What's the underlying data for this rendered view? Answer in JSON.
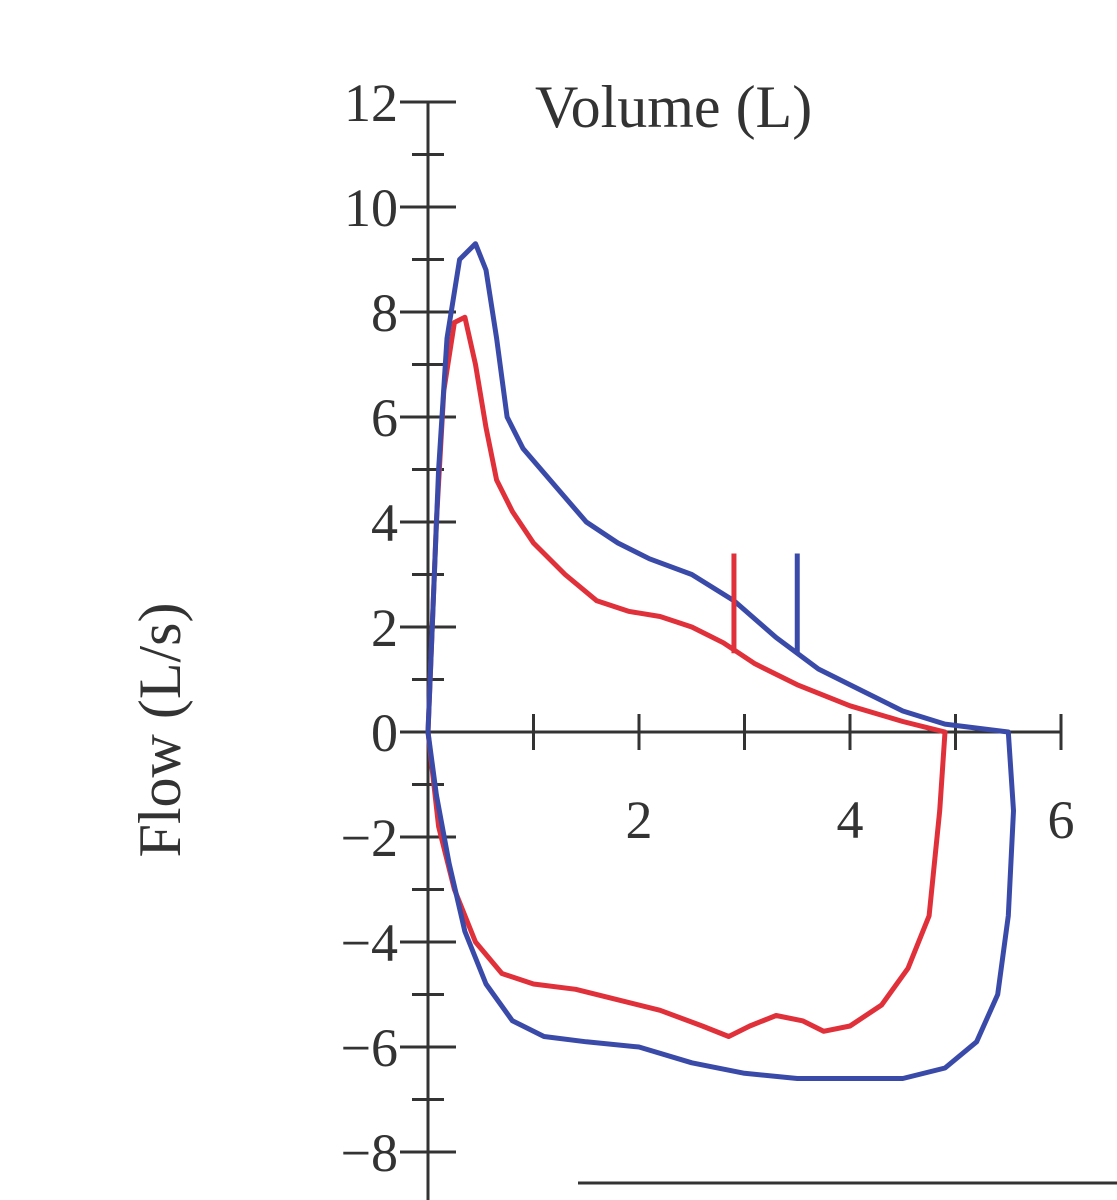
{
  "chart_data": {
    "type": "line",
    "xlabel": "Volume (L)",
    "ylabel": "Flow (L/s)",
    "xlim": [
      0,
      6
    ],
    "ylim": [
      -8,
      12
    ],
    "x_tick_labels": [
      "2",
      "4",
      "6"
    ],
    "y_tick_labels": [
      "12",
      "10",
      "8",
      "6",
      "4",
      "2",
      "0",
      "−2",
      "−4",
      "−6",
      "−8"
    ],
    "x_ticks": [
      1,
      2,
      3,
      4,
      5,
      6
    ],
    "x_tick_label_values": [
      2,
      4,
      6
    ],
    "y_ticks": [
      12,
      10,
      8,
      6,
      4,
      2,
      0,
      -2,
      -4,
      -6,
      -8
    ],
    "grid": false,
    "colors": {
      "red": "#e0303a",
      "blue": "#3a4aa8",
      "axis": "#333333"
    },
    "series": [
      {
        "color": "#e0303a",
        "points": [
          [
            0,
            0
          ],
          [
            0.03,
            1.5
          ],
          [
            0.08,
            4
          ],
          [
            0.15,
            6.5
          ],
          [
            0.25,
            7.8
          ],
          [
            0.35,
            7.9
          ],
          [
            0.45,
            7
          ],
          [
            0.55,
            5.8
          ],
          [
            0.65,
            4.8
          ],
          [
            0.8,
            4.2
          ],
          [
            1.0,
            3.6
          ],
          [
            1.3,
            3.0
          ],
          [
            1.6,
            2.5
          ],
          [
            1.9,
            2.3
          ],
          [
            2.2,
            2.2
          ],
          [
            2.5,
            2.0
          ],
          [
            2.8,
            1.7
          ],
          [
            3.1,
            1.3
          ],
          [
            3.5,
            0.9
          ],
          [
            4.0,
            0.5
          ],
          [
            4.5,
            0.2
          ],
          [
            4.8,
            0.05
          ],
          [
            4.9,
            0
          ],
          [
            4.85,
            -1.5
          ],
          [
            4.75,
            -3.5
          ],
          [
            4.55,
            -4.5
          ],
          [
            4.3,
            -5.2
          ],
          [
            4.0,
            -5.6
          ],
          [
            3.75,
            -5.7
          ],
          [
            3.55,
            -5.5
          ],
          [
            3.3,
            -5.4
          ],
          [
            3.05,
            -5.6
          ],
          [
            2.85,
            -5.8
          ],
          [
            2.6,
            -5.6
          ],
          [
            2.2,
            -5.3
          ],
          [
            1.8,
            -5.1
          ],
          [
            1.4,
            -4.9
          ],
          [
            1.0,
            -4.8
          ],
          [
            0.7,
            -4.6
          ],
          [
            0.45,
            -4
          ],
          [
            0.25,
            -3
          ],
          [
            0.1,
            -1.8
          ],
          [
            0,
            0
          ]
        ]
      },
      {
        "color": "#3a4aa8",
        "points": [
          [
            0,
            0
          ],
          [
            0.05,
            2.5
          ],
          [
            0.1,
            5
          ],
          [
            0.18,
            7.5
          ],
          [
            0.3,
            9
          ],
          [
            0.45,
            9.3
          ],
          [
            0.55,
            8.8
          ],
          [
            0.65,
            7.5
          ],
          [
            0.75,
            6
          ],
          [
            0.9,
            5.4
          ],
          [
            1.2,
            4.7
          ],
          [
            1.5,
            4.0
          ],
          [
            1.8,
            3.6
          ],
          [
            2.1,
            3.3
          ],
          [
            2.5,
            3.0
          ],
          [
            2.9,
            2.5
          ],
          [
            3.3,
            1.8
          ],
          [
            3.7,
            1.2
          ],
          [
            4.1,
            0.8
          ],
          [
            4.5,
            0.4
          ],
          [
            4.9,
            0.15
          ],
          [
            5.3,
            0.05
          ],
          [
            5.5,
            0
          ],
          [
            5.55,
            -1.5
          ],
          [
            5.5,
            -3.5
          ],
          [
            5.4,
            -5
          ],
          [
            5.2,
            -5.9
          ],
          [
            4.9,
            -6.4
          ],
          [
            4.5,
            -6.6
          ],
          [
            4.0,
            -6.6
          ],
          [
            3.5,
            -6.6
          ],
          [
            3.0,
            -6.5
          ],
          [
            2.5,
            -6.3
          ],
          [
            2.0,
            -6.0
          ],
          [
            1.5,
            -5.9
          ],
          [
            1.1,
            -5.8
          ],
          [
            0.8,
            -5.5
          ],
          [
            0.55,
            -4.8
          ],
          [
            0.35,
            -3.8
          ],
          [
            0.2,
            -2.5
          ],
          [
            0.08,
            -1.2
          ],
          [
            0,
            0
          ]
        ]
      }
    ],
    "annotations": [
      {
        "type": "vertical-marker",
        "x": 2.9,
        "y_from": 1.5,
        "y_to": 3.4,
        "color": "#e0303a"
      },
      {
        "type": "vertical-marker",
        "x": 3.5,
        "y_from": 1.5,
        "y_to": 3.4,
        "color": "#3a4aa8"
      }
    ]
  }
}
